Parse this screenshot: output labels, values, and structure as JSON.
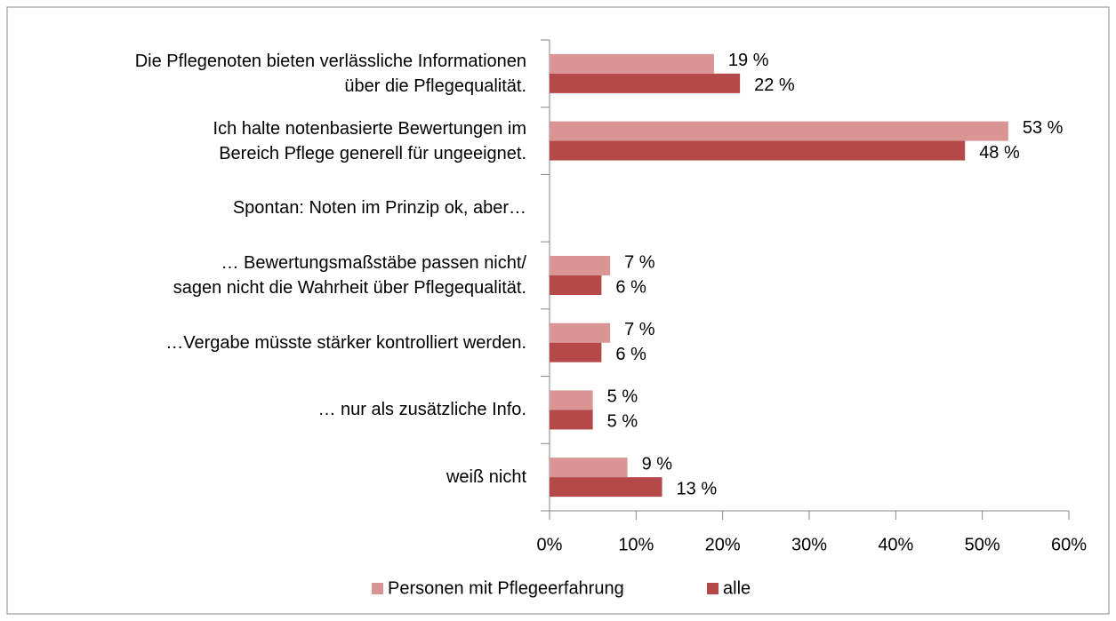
{
  "chart_data": {
    "type": "hbar",
    "categories": [
      "Die Pflegenoten bieten verlässliche Informationen\nüber die Pflegequalität.",
      "Ich halte notenbasierte Bewertungen im\nBereich Pflege generell für ungeeignet.",
      "Spontan: Noten im Prinzip ok, aber…",
      "… Bewertungsmaßstäbe passen nicht/\nsagen nicht die Wahrheit über Pflegequalität.",
      "…Vergabe müsste stärker kontrolliert werden.",
      "… nur als zusätzliche Info.",
      "weiß nicht"
    ],
    "series": [
      {
        "name": "Personen mit Pflegeerfahrung",
        "color": "#d99594",
        "values": [
          19,
          53,
          null,
          7,
          7,
          5,
          9
        ],
        "value_labels": [
          "19 %",
          "53 %",
          null,
          "7 %",
          "7 %",
          "5 %",
          "9 %"
        ]
      },
      {
        "name": "alle",
        "color": "#b5494a",
        "values": [
          22,
          48,
          null,
          6,
          6,
          5,
          13
        ],
        "value_labels": [
          "22 %",
          "48 %",
          null,
          "6 %",
          "6 %",
          "5 %",
          "13 %"
        ]
      }
    ],
    "xlim": [
      0,
      60
    ],
    "xticks": [
      {
        "value": 0,
        "label": "0%"
      },
      {
        "value": 10,
        "label": "10%"
      },
      {
        "value": 20,
        "label": "20%"
      },
      {
        "value": 30,
        "label": "30%"
      },
      {
        "value": 40,
        "label": "40%"
      },
      {
        "value": 50,
        "label": "50%"
      },
      {
        "value": 60,
        "label": "60%"
      }
    ],
    "legend": "bottom"
  }
}
